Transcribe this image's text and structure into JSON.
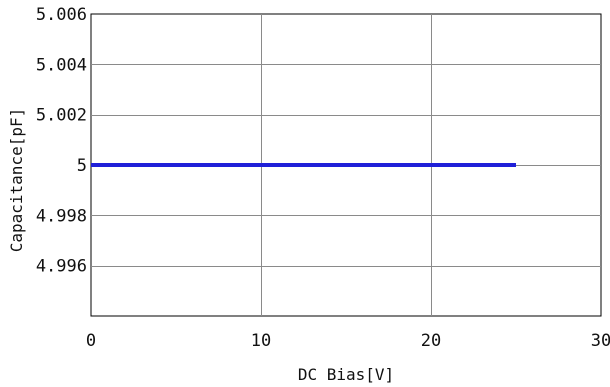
{
  "chart_data": {
    "type": "line",
    "title": "",
    "xlabel": "DC Bias[V]",
    "ylabel": "Capacitance[pF]",
    "xlim": [
      0,
      30
    ],
    "ylim": [
      4.994,
      5.006
    ],
    "x_ticks": [
      0,
      10,
      20,
      30
    ],
    "x_tick_labels": [
      "0",
      "10",
      "20",
      "30"
    ],
    "y_ticks": [
      4.996,
      4.998,
      5.0,
      5.002,
      5.004,
      5.006
    ],
    "y_tick_labels": [
      "4.996",
      "4.998",
      "5",
      "5.002",
      "5.004",
      "5.006"
    ],
    "grid": true,
    "series": [
      {
        "color": "#1f1fd8",
        "x": [
          0,
          5,
          10,
          15,
          20,
          25
        ],
        "y": [
          5.0,
          5.0,
          5.0,
          5.0,
          5.0,
          5.0
        ]
      }
    ]
  }
}
